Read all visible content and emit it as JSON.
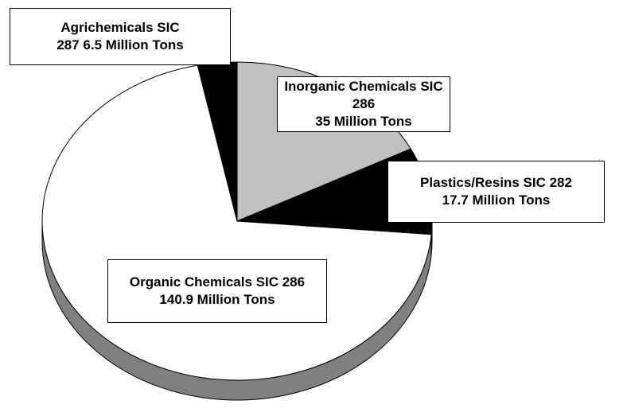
{
  "chart_data": {
    "type": "pie",
    "categories": [
      "Inorganic Chemicals SIC 286",
      "Plastics/Resins SIC 282",
      "Organic Chemicals SIC 286",
      "Agrichemicals SIC 287"
    ],
    "values": [
      35,
      17.7,
      140.9,
      6.5
    ],
    "value_labels": [
      "35 Million Tons",
      "17.7 Million Tons",
      "140.9 Million Tons",
      "6.5 Million Tons"
    ],
    "colors": [
      "#c0c0c0",
      "#000000",
      "#ffffff",
      "#000000"
    ]
  }
}
